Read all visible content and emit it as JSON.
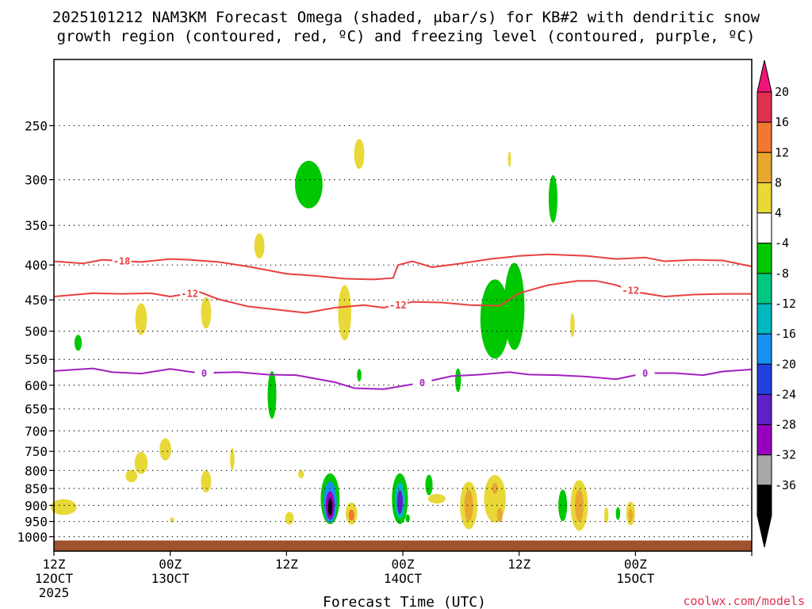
{
  "chart_data": {
    "type": "contour",
    "title_line1": "2025101212 NAM3KM Forecast Omega (shaded, μbar/s) for KB#2 with dendritic snow",
    "title_line2": "growth region (contoured, red, ºC) and freezing level (contoured, purple, ºC)",
    "xlabel": "Forecast Time (UTC)",
    "credit": "coolwx.com/models",
    "y_axis": {
      "scale": "log-pressure",
      "range_hpa": [
        1050,
        200
      ],
      "ticks": [
        250,
        300,
        350,
        400,
        450,
        500,
        550,
        600,
        650,
        700,
        750,
        800,
        850,
        900,
        950,
        1000
      ]
    },
    "x_axis": {
      "range_hours": [
        0,
        72
      ],
      "ticks": [
        {
          "hour": 0,
          "l1": "12Z",
          "l2": "12OCT",
          "l3": "2025"
        },
        {
          "hour": 12,
          "l1": "00Z",
          "l2": "13OCT",
          "l3": ""
        },
        {
          "hour": 24,
          "l1": "12Z",
          "l2": "",
          "l3": ""
        },
        {
          "hour": 36,
          "l1": "00Z",
          "l2": "14OCT",
          "l3": ""
        },
        {
          "hour": 48,
          "l1": "12Z",
          "l2": "",
          "l3": ""
        },
        {
          "hour": 60,
          "l1": "00Z",
          "l2": "15OCT",
          "l3": ""
        }
      ]
    },
    "colorbar": {
      "labels": [
        "20",
        "16",
        "12",
        "8",
        "4",
        "-4",
        "-8",
        "-12",
        "-16",
        "-20",
        "-24",
        "-28",
        "-32",
        "-36"
      ],
      "colors": [
        "#e03050",
        "#f07830",
        "#e8a830",
        "#e8d838",
        "#ffffff",
        "#00c800",
        "#00c880",
        "#00b8c0",
        "#1890f0",
        "#2040e0",
        "#6020c8",
        "#9800c0",
        "#a8a8a8",
        "#000000"
      ],
      "top_arrow_color": "#f0147a",
      "bottom_arrow_color": "#000000"
    },
    "contours": [
      {
        "name": "-18",
        "color": "#e84040",
        "points": [
          [
            0,
            395
          ],
          [
            3,
            398
          ],
          [
            5,
            393
          ],
          [
            9,
            396
          ],
          [
            12,
            392
          ],
          [
            14,
            393
          ],
          [
            17,
            396
          ],
          [
            20,
            402
          ],
          [
            24,
            412
          ],
          [
            27,
            415
          ],
          [
            30,
            419
          ],
          [
            33,
            420
          ],
          [
            35,
            418
          ],
          [
            35.5,
            400
          ],
          [
            37,
            395
          ],
          [
            39,
            403
          ],
          [
            42,
            398
          ],
          [
            45,
            392
          ],
          [
            48,
            388
          ],
          [
            51,
            386
          ],
          [
            55,
            388
          ],
          [
            58,
            392
          ],
          [
            61,
            390
          ],
          [
            63,
            395
          ],
          [
            66,
            393
          ],
          [
            69,
            394
          ],
          [
            72,
            402
          ]
        ],
        "labels": [
          {
            "hour": 7,
            "text": "-18"
          }
        ]
      },
      {
        "name": "-12",
        "color": "#e84040",
        "points": [
          [
            0,
            445
          ],
          [
            4,
            440
          ],
          [
            7,
            441
          ],
          [
            10,
            440
          ],
          [
            12,
            445
          ],
          [
            15,
            438
          ],
          [
            17,
            449
          ],
          [
            20,
            460
          ],
          [
            23,
            465
          ],
          [
            26,
            470
          ],
          [
            29,
            462
          ],
          [
            32,
            458
          ],
          [
            34,
            462
          ],
          [
            37,
            453
          ],
          [
            40,
            454
          ],
          [
            43,
            458
          ],
          [
            46,
            459
          ],
          [
            48,
            440
          ],
          [
            51,
            428
          ],
          [
            54,
            422
          ],
          [
            56,
            422
          ],
          [
            58,
            428
          ],
          [
            60,
            438
          ],
          [
            63,
            445
          ],
          [
            66,
            442
          ],
          [
            69,
            441
          ],
          [
            72,
            441
          ]
        ],
        "labels": [
          {
            "hour": 14,
            "text": "-12"
          },
          {
            "hour": 35.5,
            "text": "-12"
          },
          {
            "hour": 59.5,
            "text": "-12"
          }
        ]
      },
      {
        "name": "0",
        "color": "#a020c0",
        "points": [
          [
            0,
            572
          ],
          [
            4,
            567
          ],
          [
            6,
            574
          ],
          [
            9,
            577
          ],
          [
            12,
            568
          ],
          [
            15,
            576
          ],
          [
            19,
            574
          ],
          [
            22,
            579
          ],
          [
            25,
            580
          ],
          [
            29,
            594
          ],
          [
            31,
            606
          ],
          [
            34,
            608
          ],
          [
            38,
            595
          ],
          [
            41,
            582
          ],
          [
            44,
            579
          ],
          [
            47,
            574
          ],
          [
            49,
            579
          ],
          [
            52,
            580
          ],
          [
            55,
            583
          ],
          [
            58,
            588
          ],
          [
            61,
            576
          ],
          [
            64,
            576
          ],
          [
            67,
            580
          ],
          [
            69,
            573
          ],
          [
            72,
            569
          ]
        ],
        "labels": [
          {
            "hour": 15.5,
            "text": "0"
          },
          {
            "hour": 38,
            "text": "0"
          },
          {
            "hour": 61,
            "text": "0"
          }
        ]
      }
    ],
    "omega_cells": [
      {
        "hour": 1,
        "p": 905,
        "w": 1.8,
        "h": 20,
        "color": "#e8d838"
      },
      {
        "hour": 2.5,
        "p": 520,
        "w": 0.5,
        "h": 20,
        "color": "#00c800"
      },
      {
        "hour": 9,
        "p": 480,
        "w": 0.8,
        "h": 40,
        "color": "#e8d838"
      },
      {
        "hour": 9,
        "p": 780,
        "w": 0.9,
        "h": 28,
        "color": "#e8d838"
      },
      {
        "hour": 8,
        "p": 815,
        "w": 0.8,
        "h": 16,
        "color": "#e8d838"
      },
      {
        "hour": 11.5,
        "p": 745,
        "w": 0.8,
        "h": 28,
        "color": "#e8d838"
      },
      {
        "hour": 12.2,
        "p": 945,
        "w": 0.3,
        "h": 6,
        "color": "#e8d838"
      },
      {
        "hour": 15.7,
        "p": 470,
        "w": 0.7,
        "h": 40,
        "color": "#e8d838"
      },
      {
        "hour": 15.7,
        "p": 830,
        "w": 0.7,
        "h": 28,
        "color": "#e8d838"
      },
      {
        "hour": 18.4,
        "p": 770,
        "w": 0.3,
        "h": 28,
        "color": "#e8d838"
      },
      {
        "hour": 21.2,
        "p": 375,
        "w": 0.7,
        "h": 32,
        "color": "#e8d838"
      },
      {
        "hour": 22.5,
        "p": 620,
        "w": 0.6,
        "h": 60,
        "color": "#00c800"
      },
      {
        "hour": 26.3,
        "p": 305,
        "w": 1.9,
        "h": 60,
        "color": "#00c800"
      },
      {
        "hour": 30,
        "p": 470,
        "w": 0.9,
        "h": 70,
        "color": "#e8d838"
      },
      {
        "hour": 31.5,
        "p": 275,
        "w": 0.7,
        "h": 38,
        "color": "#e8d838"
      },
      {
        "hour": 31.5,
        "p": 580,
        "w": 0.3,
        "h": 16,
        "color": "#00c800"
      },
      {
        "hour": 24.3,
        "p": 940,
        "w": 0.6,
        "h": 16,
        "color": "#e8d838"
      },
      {
        "hour": 25.5,
        "p": 810,
        "w": 0.4,
        "h": 10,
        "color": "#e8d838"
      },
      {
        "hour": 28.5,
        "p": 880,
        "w": 1.3,
        "h": 64,
        "color": "#00c800"
      },
      {
        "hour": 28.5,
        "p": 890,
        "w": 0.9,
        "h": 52,
        "color": "#1890f0"
      },
      {
        "hour": 28.5,
        "p": 900,
        "w": 0.6,
        "h": 36,
        "color": "#9800c0"
      },
      {
        "hour": 28.5,
        "p": 905,
        "w": 0.3,
        "h": 22,
        "color": "#000000"
      },
      {
        "hour": 30.7,
        "p": 925,
        "w": 0.8,
        "h": 28,
        "color": "#e8d838"
      },
      {
        "hour": 30.7,
        "p": 930,
        "w": 0.4,
        "h": 14,
        "color": "#f07830"
      },
      {
        "hour": 35.7,
        "p": 880,
        "w": 1.1,
        "h": 64,
        "color": "#00c800"
      },
      {
        "hour": 35.7,
        "p": 885,
        "w": 0.7,
        "h": 46,
        "color": "#00b8c0"
      },
      {
        "hour": 35.7,
        "p": 890,
        "w": 0.4,
        "h": 30,
        "color": "#6020c8"
      },
      {
        "hour": 38.7,
        "p": 840,
        "w": 0.5,
        "h": 26,
        "color": "#00c800"
      },
      {
        "hour": 39.5,
        "p": 880,
        "w": 1.2,
        "h": 12,
        "color": "#e8d838"
      },
      {
        "hour": 41.7,
        "p": 590,
        "w": 0.4,
        "h": 30,
        "color": "#00c800"
      },
      {
        "hour": 42.8,
        "p": 900,
        "w": 1.2,
        "h": 60,
        "color": "#e8d838"
      },
      {
        "hour": 42.8,
        "p": 900,
        "w": 0.6,
        "h": 40,
        "color": "#e8a830"
      },
      {
        "hour": 45.5,
        "p": 880,
        "w": 1.5,
        "h": 60,
        "color": "#e8d838"
      },
      {
        "hour": 45.5,
        "p": 850,
        "w": 0.4,
        "h": 14,
        "color": "#e8a830"
      },
      {
        "hour": 46,
        "p": 930,
        "w": 0.4,
        "h": 18,
        "color": "#e8a830"
      },
      {
        "hour": 45.5,
        "p": 480,
        "w": 2.0,
        "h": 100,
        "color": "#00c800"
      },
      {
        "hour": 47.5,
        "p": 460,
        "w": 1.4,
        "h": 110,
        "color": "#00c800"
      },
      {
        "hour": 47,
        "p": 280,
        "w": 0.2,
        "h": 20,
        "color": "#e8d838"
      },
      {
        "hour": 51.5,
        "p": 320,
        "w": 0.6,
        "h": 60,
        "color": "#00c800"
      },
      {
        "hour": 52.5,
        "p": 900,
        "w": 0.6,
        "h": 40,
        "color": "#00c800"
      },
      {
        "hour": 53.5,
        "p": 490,
        "w": 0.3,
        "h": 30,
        "color": "#e8d838"
      },
      {
        "hour": 54.2,
        "p": 900,
        "w": 1.2,
        "h": 64,
        "color": "#e8d838"
      },
      {
        "hour": 54.2,
        "p": 900,
        "w": 0.6,
        "h": 40,
        "color": "#e8a830"
      },
      {
        "hour": 57,
        "p": 930,
        "w": 0.3,
        "h": 20,
        "color": "#e8d838"
      },
      {
        "hour": 58.2,
        "p": 925,
        "w": 0.3,
        "h": 16,
        "color": "#00c800"
      },
      {
        "hour": 59.5,
        "p": 925,
        "w": 0.6,
        "h": 30,
        "color": "#e8d838"
      },
      {
        "hour": 59.5,
        "p": 930,
        "w": 0.3,
        "h": 16,
        "color": "#e8a830"
      },
      {
        "hour": 36.5,
        "p": 940,
        "w": 0.3,
        "h": 10,
        "color": "#00c800"
      }
    ],
    "ground_color": "#a0522d"
  }
}
